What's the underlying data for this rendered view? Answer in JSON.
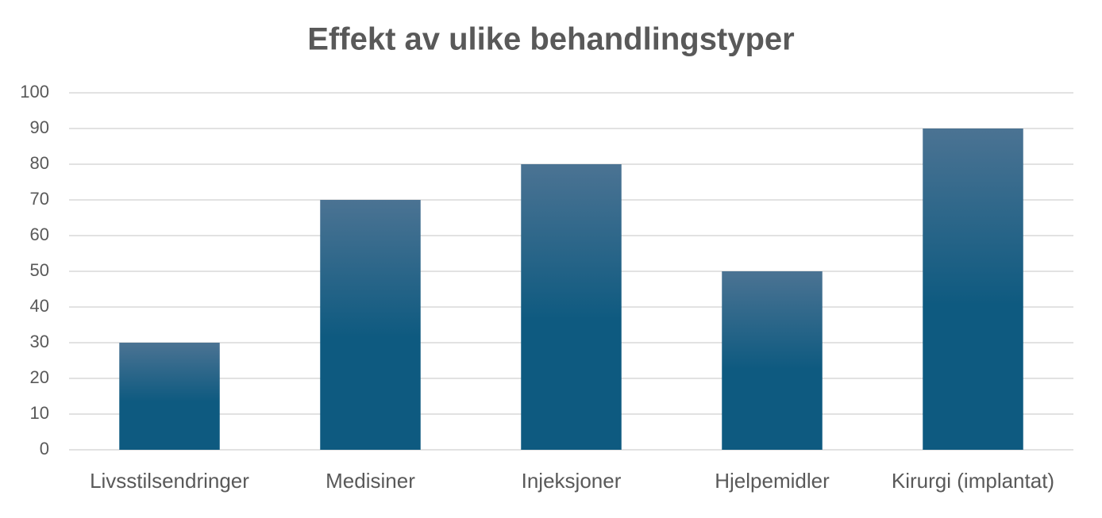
{
  "chart_data": {
    "type": "bar",
    "title": "Effekt av ulike behandlingstyper",
    "categories": [
      "Livsstilsendringer",
      "Medisiner",
      "Injeksjoner",
      "Hjelpemidler",
      "Kirurgi (implantat)"
    ],
    "values": [
      30,
      70,
      80,
      50,
      90
    ],
    "color": "#0e5a80",
    "ylim": [
      0,
      100
    ],
    "yticks": [
      0,
      10,
      20,
      30,
      40,
      50,
      60,
      70,
      80,
      90,
      100
    ],
    "grid": true
  }
}
